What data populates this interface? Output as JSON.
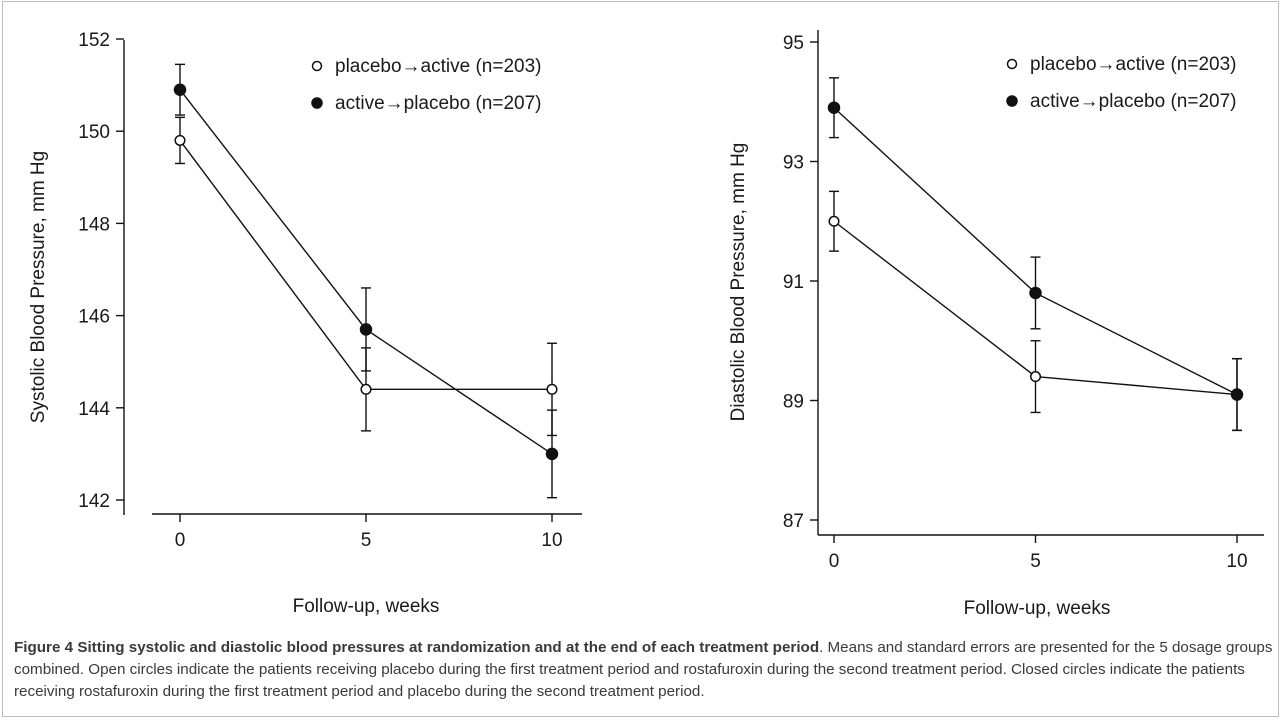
{
  "chart_data": [
    {
      "type": "line",
      "ylabel": "Systolic Blood Pressure, mm Hg",
      "xlabel": "Follow-up, weeks",
      "x": [
        0,
        5,
        10
      ],
      "xticks": [
        "0",
        "5",
        "10"
      ],
      "yticks": [
        "142",
        "144",
        "146",
        "148",
        "150",
        "152"
      ],
      "ylim": [
        141.7,
        152.4
      ],
      "series": [
        {
          "name": "placebo→active (n=203)",
          "marker": "open-circle",
          "values": [
            149.8,
            144.4,
            144.4
          ],
          "se": [
            0.5,
            0.9,
            1.0
          ]
        },
        {
          "name": "active→placebo (n=207)",
          "marker": "filled-circle",
          "values": [
            150.9,
            145.7,
            143.0
          ],
          "se": [
            0.55,
            0.9,
            0.95
          ]
        }
      ],
      "legend": "top"
    },
    {
      "type": "line",
      "ylabel": "Diastolic Blood Pressure, mm Hg",
      "xlabel": "Follow-up, weeks",
      "x": [
        0,
        5,
        10
      ],
      "xticks": [
        "0",
        "5",
        "10"
      ],
      "yticks": [
        "87",
        "89",
        "91",
        "93",
        "95"
      ],
      "ylim": [
        86.7,
        95.1
      ],
      "series": [
        {
          "name": "placebo→active (n=203)",
          "marker": "open-circle",
          "values": [
            92.0,
            89.4,
            89.1
          ],
          "se": [
            0.5,
            0.6,
            0.6
          ]
        },
        {
          "name": "active→placebo (n=207)",
          "marker": "filled-circle",
          "values": [
            93.9,
            90.8,
            89.1
          ],
          "se": [
            0.5,
            0.6,
            0.6
          ]
        }
      ],
      "legend": "top"
    }
  ],
  "caption": {
    "label": "Figure 4",
    "title": "Sitting systolic and diastolic blood pressures at randomization and at the end of each treatment period",
    "body": ". Means and standard errors are presented for the 5 dosage groups combined. Open circles indicate the patients receiving placebo during the first treatment period and rostafuroxin during the second treatment period. Closed circles indicate the patients receiving rostafuroxin during the first treatment period and placebo during the second treatment period."
  }
}
